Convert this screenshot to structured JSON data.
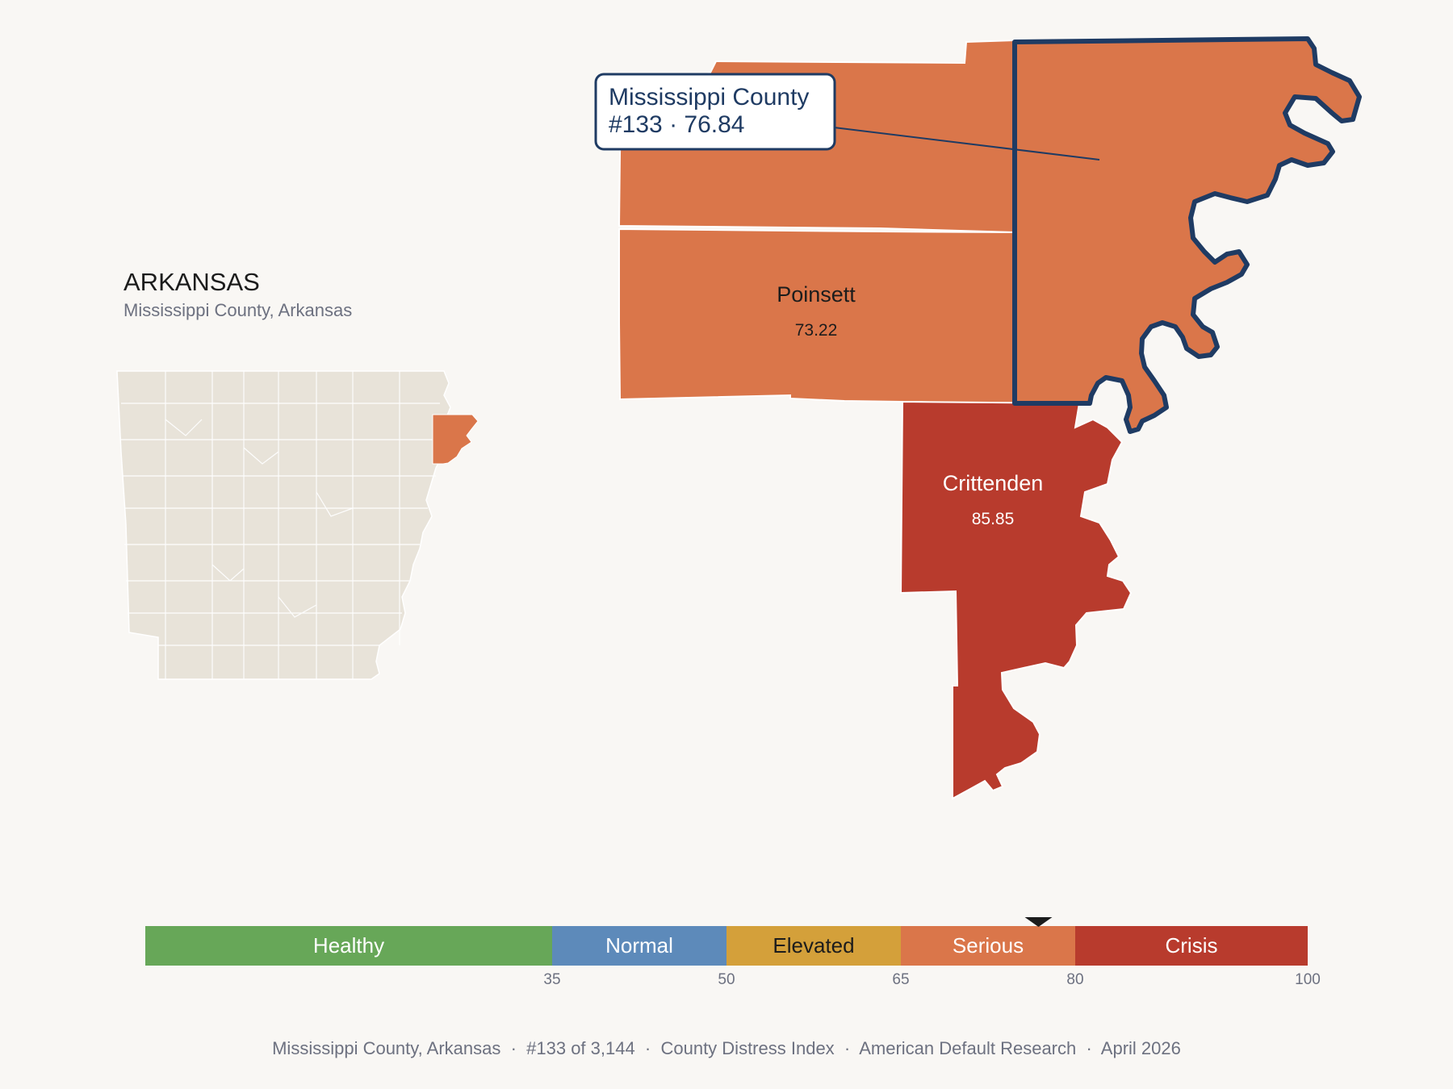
{
  "state": {
    "title": "ARKANSAS",
    "subtitle": "Mississippi County, Arkansas"
  },
  "counties": [
    {
      "name": "Poinsett",
      "value": "73.22",
      "category": "Serious"
    },
    {
      "name": "Crittenden",
      "value": "85.85",
      "category": "Crisis"
    },
    {
      "name": "Mississippi",
      "value": "76.84",
      "category": "Serious",
      "selected": true
    }
  ],
  "callout": {
    "line1": "Mississippi County",
    "line2": "#133 · 76.84"
  },
  "scale": {
    "marker_value": 76.84,
    "segments": [
      {
        "label": "Healthy",
        "from": 0,
        "to": 35,
        "color": "#67a758",
        "text_color": "#ffffff"
      },
      {
        "label": "Normal",
        "from": 35,
        "to": 50,
        "color": "#5d8aba",
        "text_color": "#ffffff"
      },
      {
        "label": "Elevated",
        "from": 50,
        "to": 65,
        "color": "#d4a03a",
        "text_color": "#1c1c1c"
      },
      {
        "label": "Serious",
        "from": 65,
        "to": 80,
        "color": "#da764a",
        "text_color": "#ffffff"
      },
      {
        "label": "Crisis",
        "from": 80,
        "to": 100,
        "color": "#b83b2d",
        "text_color": "#ffffff"
      }
    ],
    "ticks": [
      "35",
      "50",
      "65",
      "80",
      "100"
    ]
  },
  "colors": {
    "serious": "#da764a",
    "crisis": "#b83b2d",
    "outline": "#1f3b63",
    "inset_land": "#e8e3d9",
    "background": "#f9f7f4"
  },
  "footer": "Mississippi County, Arkansas  ·  #133 of 3,144  ·  County Distress Index  ·  American Default Research  ·  April 2026"
}
